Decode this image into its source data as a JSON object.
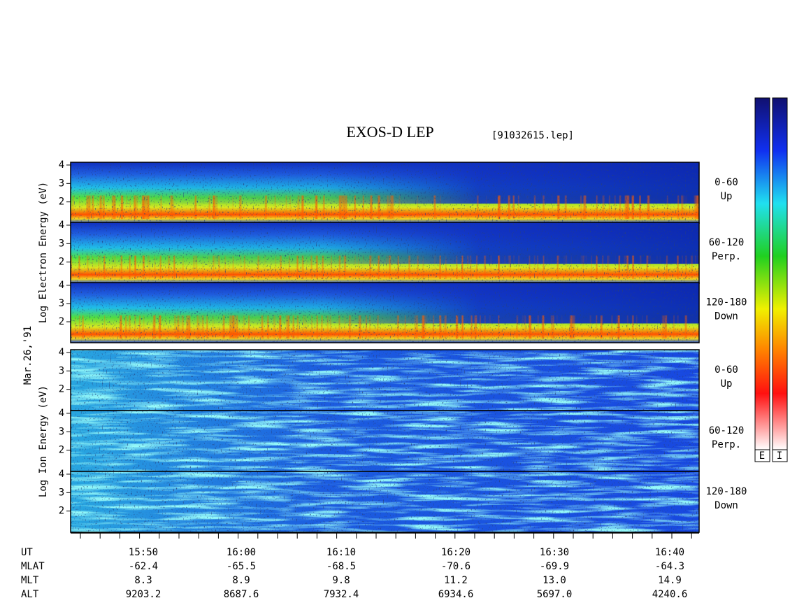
{
  "title": "EXOS-D LEP",
  "file": "[91032615.lep]",
  "date": "Mar.26,'91",
  "electron_axis_label": "Log Electron Energy (eV)",
  "ion_axis_label": "Log Ion Energy (eV)",
  "energy_axis": {
    "ylim": [
      0.85,
      4.15
    ],
    "yticks": [
      2,
      3,
      4
    ]
  },
  "panels": [
    {
      "angle": "0-60",
      "direction": "Up"
    },
    {
      "angle": "60-120",
      "direction": "Perp."
    },
    {
      "angle": "120-180",
      "direction": "Down"
    },
    {
      "angle": "0-60",
      "direction": "Up"
    },
    {
      "angle": "60-120",
      "direction": "Perp."
    },
    {
      "angle": "120-180",
      "direction": "Down"
    }
  ],
  "colorbar_labels": [
    "E",
    "I"
  ],
  "rows": [
    {
      "label": "UT",
      "values": [
        "15:50",
        "16:00",
        "16:10",
        "16:20",
        "16:30",
        "16:40"
      ]
    },
    {
      "label": "MLAT",
      "values": [
        "-62.4",
        "-65.5",
        "-68.5",
        "-70.6",
        "-69.9",
        "-64.3"
      ]
    },
    {
      "label": "MLT",
      "values": [
        "8.3",
        "8.9",
        "9.8",
        "11.2",
        "13.0",
        "14.9"
      ]
    },
    {
      "label": "ALT",
      "values": [
        "9203.2",
        "8687.6",
        "7932.4",
        "6934.6",
        "5697.0",
        "4240.6"
      ]
    }
  ]
}
